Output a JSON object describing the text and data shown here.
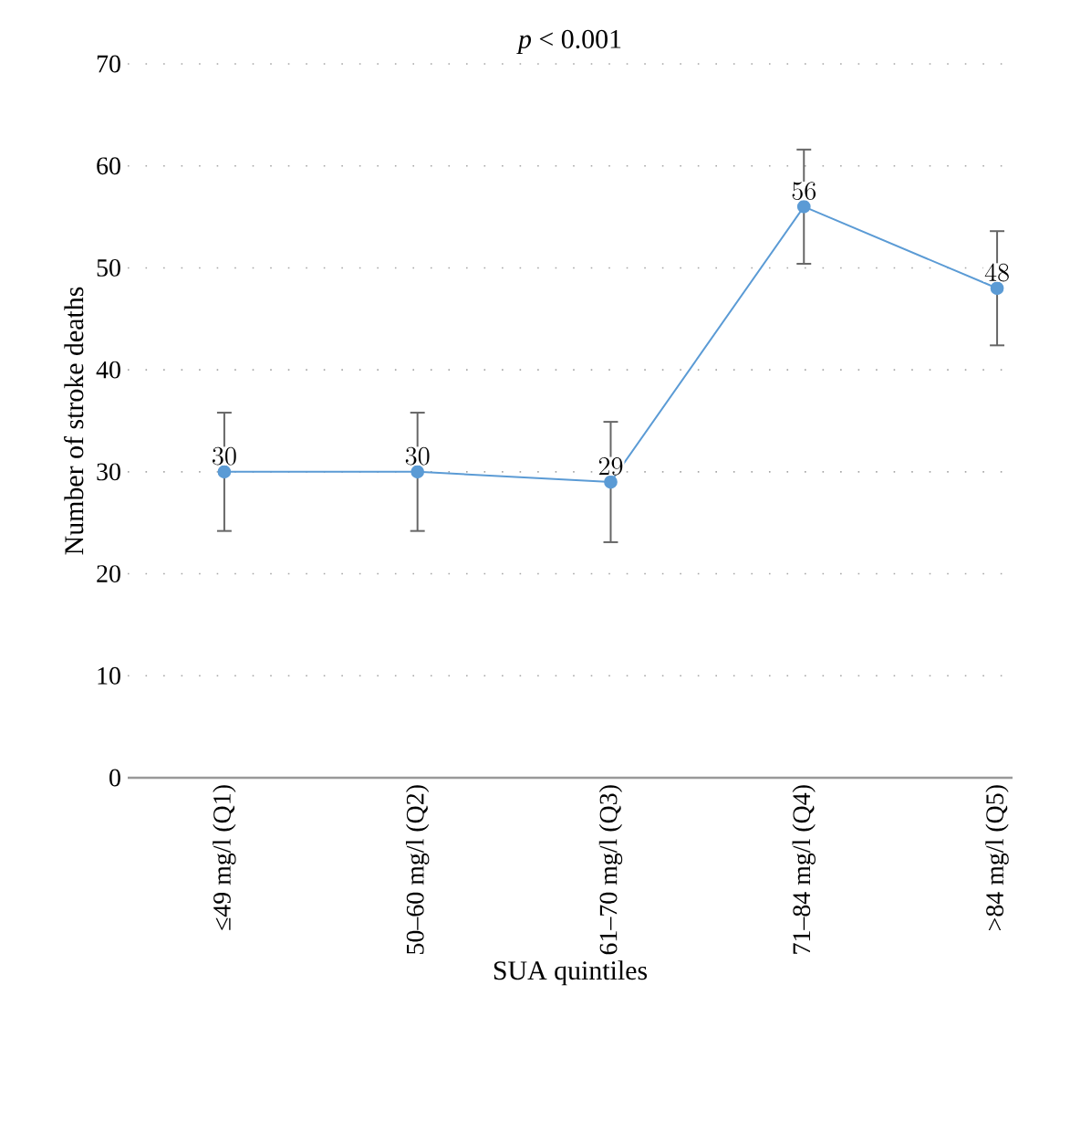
{
  "chart_data": {
    "type": "line",
    "title": "*p* < 0.001",
    "xlabel": "SUA quintiles",
    "ylabel": "Number of stroke deaths",
    "categories": [
      "≤49 mg/l (Q1)",
      "50–60 mg/l (Q2)",
      "61–70 mg/l (Q3)",
      "71–84 mg/l (Q4)",
      ">84 mg/l (Q5)"
    ],
    "values": [
      30,
      30,
      29,
      56,
      48
    ],
    "errors": [
      5.8,
      5.8,
      5.9,
      5.6,
      5.6
    ],
    "color": "#5b9bd5",
    "ylim": [
      0,
      70
    ],
    "yticks": [
      0,
      10,
      20,
      30,
      40,
      50,
      60,
      70
    ],
    "grid": "y",
    "marker": "circle",
    "line_style": "solid",
    "data_labels": true
  }
}
